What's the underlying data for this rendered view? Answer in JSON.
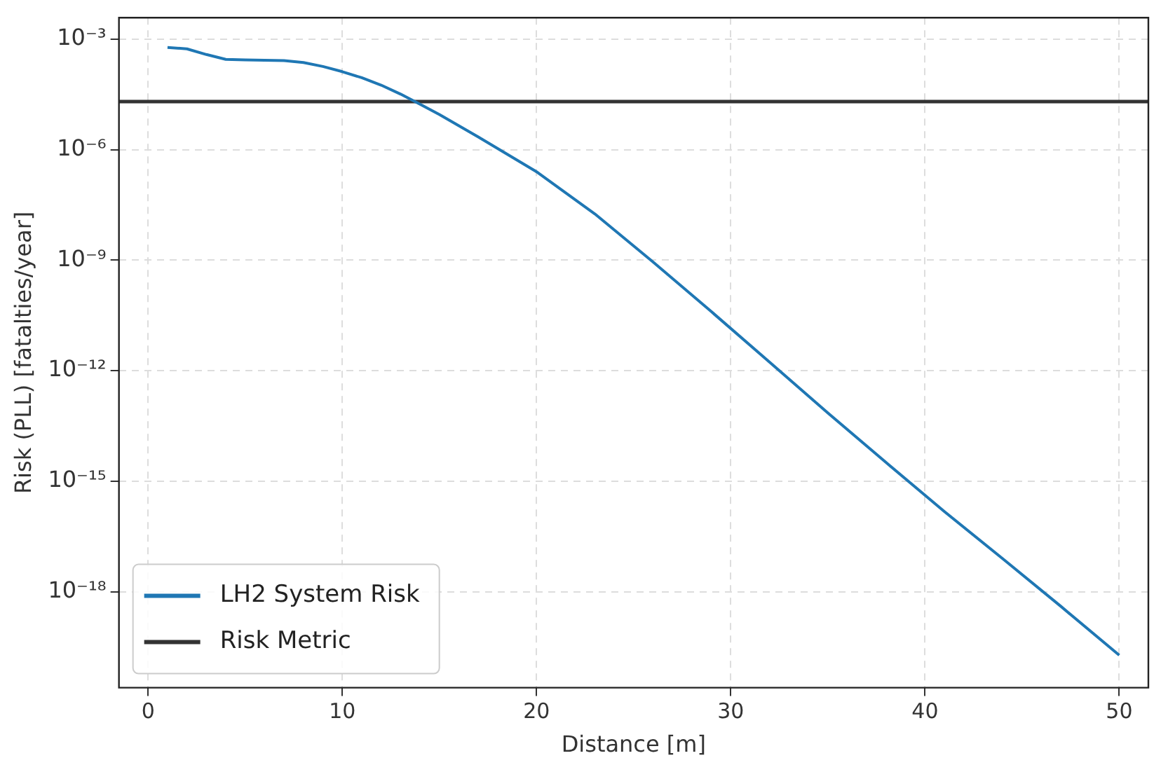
{
  "chart_data": {
    "type": "line",
    "xlabel": "Distance [m]",
    "ylabel": "Risk (PLL) [fatalties/year]",
    "x": [
      1,
      2,
      3,
      4,
      5,
      7,
      8,
      9,
      10,
      11,
      12,
      13,
      14,
      15,
      17,
      20,
      23,
      26,
      29,
      32,
      35,
      38,
      41,
      44,
      47,
      50
    ],
    "series": [
      {
        "name": "LH2 System Risk",
        "color": "#1f77b4",
        "values": [
          0.00059,
          0.00054,
          0.00038,
          0.00028,
          0.00027,
          0.00026,
          0.00023,
          0.00018,
          0.00013,
          8.9e-05,
          5.6e-05,
          3.2e-05,
          1.7e-05,
          8.9e-06,
          2.2e-06,
          2.5e-07,
          1.8e-08,
          8.9e-10,
          4e-11,
          1.7e-12,
          7.1e-14,
          3.2e-15,
          1.5e-16,
          7.9e-18,
          4e-19,
          1.9e-20
        ]
      }
    ],
    "ref_lines": [
      {
        "axis": "y",
        "value": 2e-05,
        "label": "Risk Metric",
        "color": "#333333"
      }
    ],
    "log": "y",
    "xlim": [
      -1.5,
      51.5
    ],
    "ylim": [
      2.5e-21,
      0.0038
    ],
    "xticks": [
      0,
      10,
      20,
      30,
      40,
      50
    ],
    "yticks": [
      {
        "value": 0.001,
        "label": "10⁻³"
      },
      {
        "value": 1e-06,
        "label": "10⁻⁶"
      },
      {
        "value": 1e-09,
        "label": "10⁻⁹"
      },
      {
        "value": 1e-12,
        "label": "10⁻¹²"
      },
      {
        "value": 1e-15,
        "label": "10⁻¹⁵"
      },
      {
        "value": 1e-18,
        "label": "10⁻¹⁸"
      }
    ],
    "grid": true,
    "legend": "bottom left",
    "line_style": "solid",
    "marker": "none"
  }
}
